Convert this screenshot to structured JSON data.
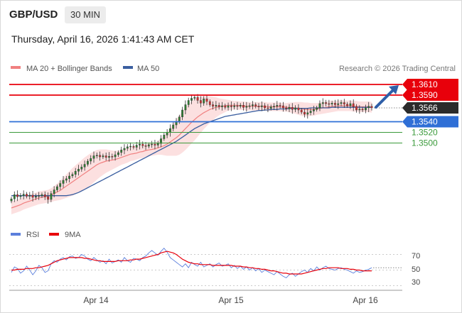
{
  "header": {
    "symbol": "GBP/USD",
    "timeframe": "30 MIN",
    "datetime": "Thursday, April 16, 2026 1:41:43 AM CET"
  },
  "legend": {
    "ma_bb": "MA 20 + Bollinger Bands",
    "ma50": "MA 50",
    "credit": "Research © 2026 Trading Central"
  },
  "rsi_legend": {
    "rsi": "RSI",
    "ma9": "9MA"
  },
  "colors": {
    "red": "#e8000b",
    "blue": "#2f6fd6",
    "green": "#3a9a3a",
    "dark": "#2b2b2b",
    "candle_up": "#2e7d32",
    "candle_down": "#d32f2f",
    "bb_fill": "#fbd5d5",
    "ma20": "#f08080",
    "ma50": "#3b5fa0",
    "arrow": "#2f5fa8"
  },
  "chart_data": [
    {
      "type": "candlestick",
      "title": "",
      "x_ticks": [
        "Apr 14",
        "Apr 15",
        "Apr 16"
      ],
      "ylim": [
        1.337,
        1.363
      ],
      "levels": [
        {
          "value": 1.361,
          "label": "1.3610",
          "role": "resistance",
          "color": "#e8000b"
        },
        {
          "value": 1.359,
          "label": "1.3590",
          "role": "resistance",
          "color": "#e8000b"
        },
        {
          "value": 1.3566,
          "label": "1.3566",
          "role": "last",
          "color": "#2b2b2b"
        },
        {
          "value": 1.354,
          "label": "1.3540",
          "role": "pivot",
          "color": "#2f6fd6"
        },
        {
          "value": 1.352,
          "label": "1.3520",
          "role": "support",
          "color": "#3a9a3a"
        },
        {
          "value": 1.35,
          "label": "1.3500",
          "role": "support",
          "color": "#3a9a3a"
        }
      ],
      "arrow": {
        "from": 1.3566,
        "to": 1.361
      },
      "closes": [
        1.3395,
        1.3403,
        1.3399,
        1.3401,
        1.3404,
        1.34,
        1.3402,
        1.3398,
        1.34,
        1.3401,
        1.3403,
        1.3399,
        1.3394,
        1.3405,
        1.3412,
        1.3418,
        1.3424,
        1.343,
        1.3433,
        1.3438,
        1.3441,
        1.3447,
        1.3451,
        1.3455,
        1.346,
        1.3466,
        1.3471,
        1.3476,
        1.3477,
        1.3474,
        1.3476,
        1.3473,
        1.3475,
        1.3474,
        1.3478,
        1.3482,
        1.3487,
        1.349,
        1.3493,
        1.3494,
        1.3492,
        1.3496,
        1.3498,
        1.3495,
        1.3494,
        1.3497,
        1.3498,
        1.3496,
        1.3499,
        1.3508,
        1.3515,
        1.352,
        1.3527,
        1.3534,
        1.354,
        1.3549,
        1.3562,
        1.3572,
        1.358,
        1.3584,
        1.3586,
        1.358,
        1.3575,
        1.3583,
        1.3578,
        1.3572,
        1.3569,
        1.3571,
        1.3568,
        1.357,
        1.3567,
        1.357,
        1.3568,
        1.357,
        1.3569,
        1.3571,
        1.3567,
        1.3569,
        1.357,
        1.3572,
        1.3569,
        1.3568,
        1.357,
        1.3566,
        1.3565,
        1.3568,
        1.3569,
        1.3571,
        1.357,
        1.3566,
        1.3564,
        1.3567,
        1.3563,
        1.3566,
        1.3562,
        1.3558,
        1.3554,
        1.3557,
        1.356,
        1.3563,
        1.3566,
        1.3574,
        1.3576,
        1.3574,
        1.3573,
        1.3575,
        1.3572,
        1.3574,
        1.3576,
        1.3573,
        1.357,
        1.3574,
        1.3568,
        1.3562,
        1.3564,
        1.3562,
        1.3566,
        1.3569,
        1.3566
      ],
      "ma20": [
        1.3378,
        1.338,
        1.3382,
        1.3384,
        1.3387,
        1.3389,
        1.3391,
        1.3393,
        1.3395,
        1.3397,
        1.3398,
        1.3399,
        1.34,
        1.3402,
        1.3405,
        1.3408,
        1.3411,
        1.3415,
        1.3419,
        1.3423,
        1.3427,
        1.3431,
        1.3435,
        1.3439,
        1.3443,
        1.3447,
        1.3451,
        1.3455,
        1.3459,
        1.3462,
        1.3464,
        1.3466,
        1.3467,
        1.3468,
        1.3469,
        1.3471,
        1.3473,
        1.3475,
        1.3477,
        1.3479,
        1.348,
        1.3481,
        1.3483,
        1.3484,
        1.3486,
        1.3487,
        1.3488,
        1.3489,
        1.3491,
        1.3493,
        1.3495,
        1.3498,
        1.3502,
        1.3506,
        1.351,
        1.3515,
        1.3521,
        1.3527,
        1.3533,
        1.3539,
        1.3544,
        1.3549,
        1.3553,
        1.3557,
        1.356,
        1.3563,
        1.3565,
        1.3567,
        1.3568,
        1.3569,
        1.357,
        1.3571,
        1.3571,
        1.3571,
        1.3571,
        1.357,
        1.357,
        1.3569,
        1.3569,
        1.3569,
        1.3569,
        1.3569,
        1.3569,
        1.3569,
        1.3568,
        1.3568,
        1.3568,
        1.3568,
        1.3568,
        1.3567,
        1.3567,
        1.3567,
        1.3566,
        1.3566,
        1.3565,
        1.3564,
        1.3563,
        1.3563,
        1.3563,
        1.3563,
        1.3564,
        1.3565,
        1.3566,
        1.3567,
        1.3568,
        1.3569,
        1.3569,
        1.357,
        1.357,
        1.357,
        1.357,
        1.357,
        1.3569,
        1.3569,
        1.3568,
        1.3568,
        1.3568,
        1.3568,
        1.3567
      ],
      "bb_width": [
        0.0012,
        0.0012,
        0.0012,
        0.0012,
        0.0012,
        0.0012,
        0.0012,
        0.0012,
        0.0012,
        0.0012,
        0.0012,
        0.0012,
        0.0012,
        0.0013,
        0.0014,
        0.0016,
        0.0018,
        0.002,
        0.0022,
        0.0024,
        0.0026,
        0.0027,
        0.0028,
        0.0029,
        0.003,
        0.003,
        0.003,
        0.0029,
        0.0028,
        0.0026,
        0.0024,
        0.0022,
        0.002,
        0.0018,
        0.0016,
        0.0015,
        0.0014,
        0.0014,
        0.0014,
        0.0013,
        0.0013,
        0.0012,
        0.0012,
        0.0012,
        0.0012,
        0.0012,
        0.0012,
        0.0012,
        0.0013,
        0.0015,
        0.0018,
        0.0022,
        0.0026,
        0.003,
        0.0034,
        0.0037,
        0.0039,
        0.004,
        0.004,
        0.004,
        0.0039,
        0.0037,
        0.0034,
        0.0031,
        0.0028,
        0.0025,
        0.0022,
        0.0019,
        0.0016,
        0.0014,
        0.0012,
        0.001,
        0.0009,
        0.0008,
        0.0008,
        0.0008,
        0.0008,
        0.0008,
        0.0008,
        0.0008,
        0.0008,
        0.0008,
        0.0008,
        0.0008,
        0.0008,
        0.0008,
        0.0008,
        0.0008,
        0.0008,
        0.0008,
        0.0008,
        0.0009,
        0.001,
        0.0011,
        0.0012,
        0.0013,
        0.0013,
        0.0013,
        0.0012,
        0.0012,
        0.0011,
        0.0011,
        0.0011,
        0.0011,
        0.0011,
        0.0011,
        0.001,
        0.001,
        0.001,
        0.001,
        0.001,
        0.001,
        0.001,
        0.001,
        0.001,
        0.001,
        0.001,
        0.001,
        0.001
      ],
      "ma50": [
        1.3401,
        1.3401,
        1.3401,
        1.3401,
        1.3401,
        1.3401,
        1.3401,
        1.3401,
        1.3401,
        1.3401,
        1.3401,
        1.3401,
        1.3401,
        1.3401,
        1.3401,
        1.3401,
        1.3401,
        1.3401,
        1.3401,
        1.3402,
        1.3403,
        1.3405,
        1.3407,
        1.341,
        1.3413,
        1.3416,
        1.3419,
        1.3422,
        1.3425,
        1.3428,
        1.3431,
        1.3434,
        1.3437,
        1.344,
        1.3443,
        1.3446,
        1.3449,
        1.3452,
        1.3455,
        1.3458,
        1.3461,
        1.3464,
        1.3467,
        1.347,
        1.3473,
        1.3476,
        1.3479,
        1.3482,
        1.3485,
        1.3488,
        1.3491,
        1.3494,
        1.3497,
        1.35,
        1.3503,
        1.3507,
        1.3511,
        1.3515,
        1.3519,
        1.3523,
        1.3527,
        1.353,
        1.3533,
        1.3536,
        1.3538,
        1.354,
        1.3542,
        1.3544,
        1.3546,
        1.3548,
        1.355,
        1.3551,
        1.3552,
        1.3553,
        1.3554,
        1.3555,
        1.3556,
        1.3557,
        1.3558,
        1.3559,
        1.356,
        1.3561,
        1.3561,
        1.3562,
        1.3562,
        1.3563,
        1.3563,
        1.3563,
        1.3564,
        1.3564,
        1.3564,
        1.3565,
        1.3565,
        1.3565,
        1.3565,
        1.3565,
        1.3565,
        1.3565,
        1.3566,
        1.3566,
        1.3566,
        1.3566,
        1.3566,
        1.3566,
        1.3566,
        1.3567,
        1.3567,
        1.3567,
        1.3567,
        1.3567,
        1.3567,
        1.3567,
        1.3567,
        1.3567,
        1.3567,
        1.3567,
        1.3567,
        1.3567,
        1.3567
      ]
    },
    {
      "type": "line",
      "title": "",
      "y_ticks": [
        "70",
        "50",
        "30"
      ],
      "ylim": [
        25,
        85
      ],
      "series": [
        {
          "name": "RSI",
          "color": "#5b7fdc",
          "values": [
            47,
            54,
            52,
            46,
            49,
            55,
            50,
            44,
            49,
            56,
            53,
            47,
            49,
            58,
            62,
            60,
            64,
            66,
            63,
            67,
            68,
            65,
            66,
            70,
            68,
            64,
            62,
            66,
            63,
            60,
            62,
            58,
            64,
            59,
            61,
            63,
            60,
            66,
            62,
            60,
            65,
            64,
            62,
            66,
            68,
            72,
            75,
            72,
            69,
            74,
            78,
            73,
            66,
            63,
            60,
            57,
            54,
            58,
            53,
            60,
            57,
            55,
            60,
            54,
            56,
            58,
            54,
            57,
            59,
            55,
            56,
            58,
            53,
            56,
            52,
            55,
            51,
            54,
            50,
            53,
            49,
            52,
            47,
            50,
            48,
            46,
            44,
            48,
            45,
            42,
            40,
            44,
            46,
            42,
            45,
            48,
            50,
            47,
            52,
            49,
            54,
            50,
            53,
            55,
            52,
            51,
            50,
            52,
            53,
            51,
            50,
            48,
            46,
            49,
            47,
            48,
            50,
            51,
            53
          ]
        },
        {
          "name": "9MA",
          "color": "#e8000b",
          "values": [
            50,
            50,
            51,
            51,
            51,
            52,
            52,
            52,
            53,
            53,
            54,
            55,
            56,
            58,
            60,
            62,
            63,
            64,
            65,
            66,
            66,
            66,
            66,
            66,
            65,
            65,
            64,
            63,
            62,
            62,
            61,
            61,
            61,
            61,
            61,
            62,
            62,
            62,
            62,
            63,
            63,
            64,
            64,
            65,
            66,
            67,
            68,
            69,
            70,
            72,
            73,
            74,
            73,
            72,
            70,
            67,
            64,
            62,
            60,
            59,
            58,
            58,
            57,
            57,
            57,
            57,
            56,
            56,
            56,
            56,
            56,
            56,
            56,
            55,
            55,
            55,
            54,
            54,
            53,
            53,
            52,
            52,
            51,
            51,
            50,
            49,
            49,
            48,
            47,
            46,
            46,
            45,
            45,
            45,
            45,
            45,
            46,
            47,
            48,
            49,
            50,
            51,
            52,
            52,
            53,
            53,
            53,
            53,
            52,
            52,
            52,
            51,
            51,
            50,
            50,
            49,
            49,
            49,
            49
          ]
        }
      ]
    }
  ]
}
